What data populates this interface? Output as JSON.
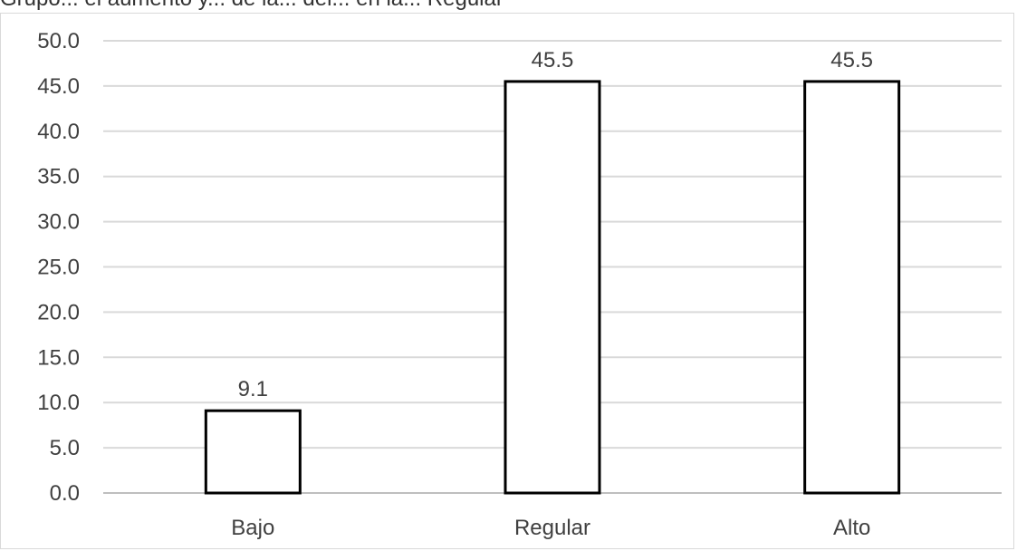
{
  "caption": "Grupo... el aumento y... de la... del... en la... Regular",
  "chart_data": {
    "type": "bar",
    "categories": [
      "Bajo",
      "Regular",
      "Alto"
    ],
    "values": [
      9.1,
      45.5,
      45.5
    ],
    "data_labels": [
      "9.1",
      "45.5",
      "45.5"
    ],
    "ylim": [
      0,
      50
    ],
    "yticks": [
      "0.0",
      "5.0",
      "10.0",
      "15.0",
      "20.0",
      "25.0",
      "30.0",
      "35.0",
      "40.0",
      "45.0",
      "50.0"
    ],
    "grid": true,
    "colors": {
      "bar_fill": "#ffffff",
      "bar_stroke": "#000000",
      "grid": "#d9d9d9",
      "axis": "#bfbfbf",
      "text": "#404040"
    }
  }
}
